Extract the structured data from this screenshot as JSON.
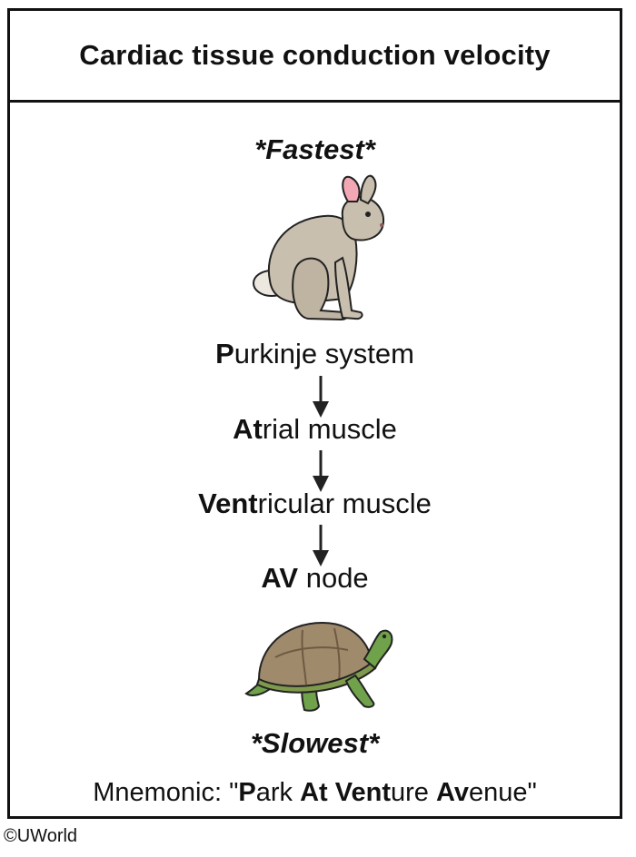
{
  "title": "Cardiac tissue conduction velocity",
  "fastest_label": "*Fastest*",
  "slowest_label": "*Slowest*",
  "sequence": [
    {
      "bold": "P",
      "rest": "urkinje system"
    },
    {
      "bold": "At",
      "rest": "rial muscle"
    },
    {
      "bold": "Vent",
      "rest": "ricular muscle"
    },
    {
      "bold": "AV",
      "rest": " node"
    }
  ],
  "mnemonic": {
    "prefix": "Mnemonic: \"",
    "parts": [
      {
        "bold": "P",
        "rest": "ark "
      },
      {
        "bold": "At",
        "rest": " "
      },
      {
        "bold": "Vent",
        "rest": "ure "
      },
      {
        "bold": "Av",
        "rest": "enue\""
      }
    ]
  },
  "icons": {
    "fast": "rabbit-icon",
    "slow": "turtle-icon",
    "arrow": "arrow-down-icon"
  },
  "colors": {
    "rabbit_fur": "#c9bfae",
    "rabbit_ear": "#f2a8b4",
    "turtle_shell": "#a08a6c",
    "turtle_skin": "#6fa24a"
  },
  "copyright": "©UWorld"
}
